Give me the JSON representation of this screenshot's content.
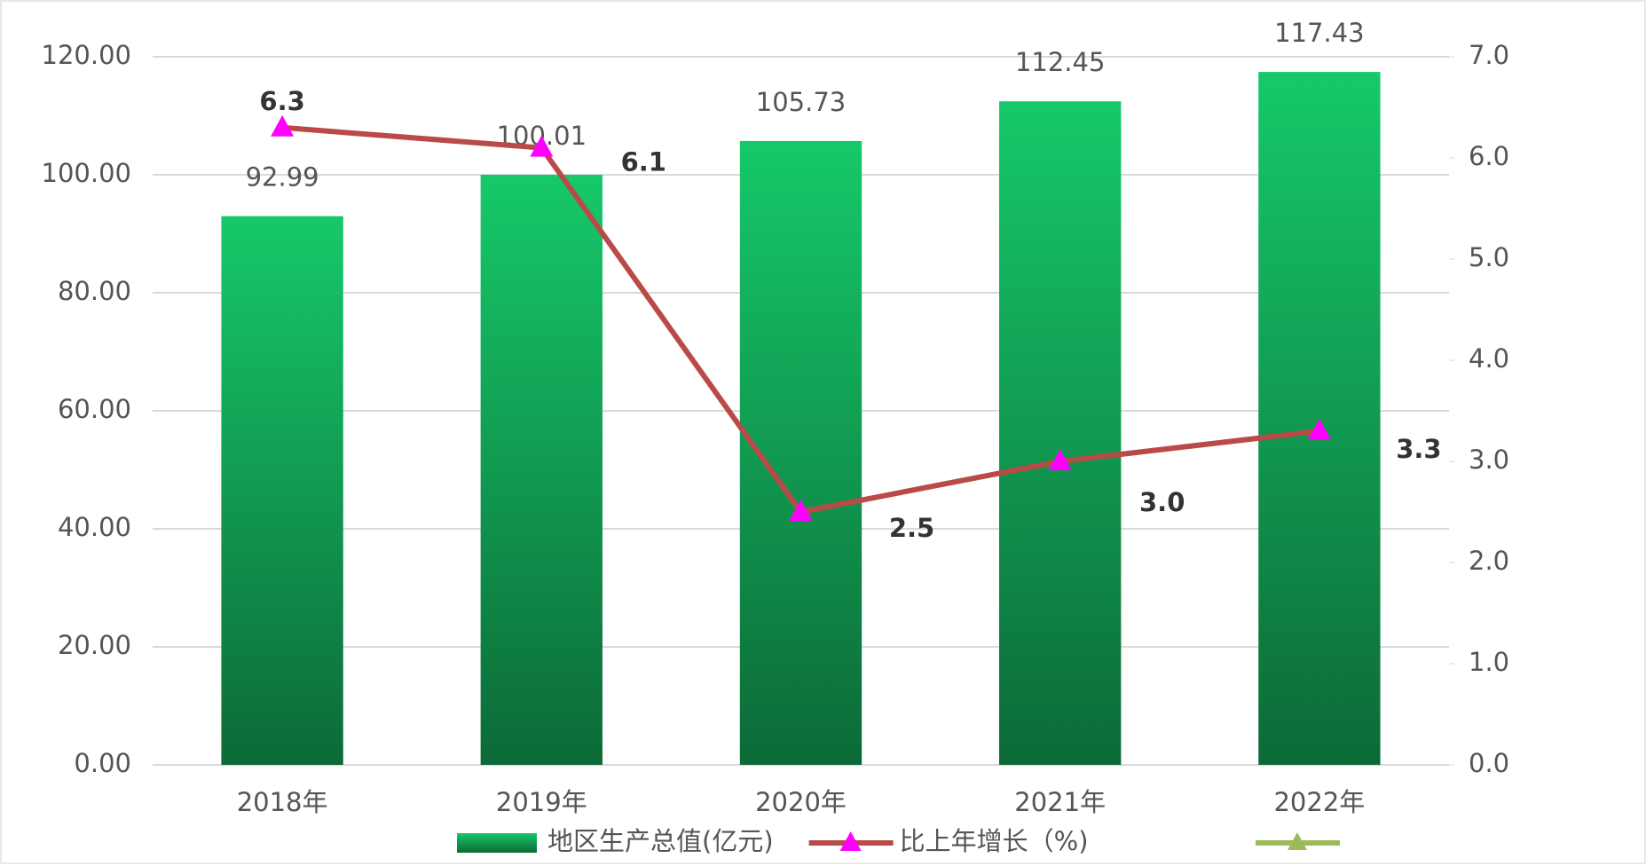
{
  "chart_data": {
    "type": "bar-line",
    "categories": [
      "2018年",
      "2019年",
      "2020年",
      "2021年",
      "2022年"
    ],
    "series": [
      {
        "name": "地区生产总值(亿元)",
        "type": "bar",
        "color": "#14b85e",
        "values": [
          92.99,
          100.01,
          105.73,
          112.45,
          117.43
        ]
      },
      {
        "name": "比上年增长（%)",
        "type": "line",
        "axis": "y2",
        "color": "#b94a48",
        "marker_color": "#ff00ff",
        "values": [
          6.3,
          6.1,
          2.5,
          3.0,
          3.3
        ],
        "value_labels": [
          "6.3",
          "6.1",
          "2.5",
          "3.0",
          "3.3"
        ]
      }
    ],
    "ylim": [
      0,
      120
    ],
    "yticks": [
      {
        "value": 0,
        "label": "0.00"
      },
      {
        "value": 20,
        "label": "20.00"
      },
      {
        "value": 40,
        "label": "40.00"
      },
      {
        "value": 60,
        "label": "60.00"
      },
      {
        "value": 80,
        "label": "80.00"
      },
      {
        "value": 100,
        "label": "100.00"
      },
      {
        "value": 120,
        "label": "120.00"
      }
    ],
    "y2lim": [
      0,
      7
    ],
    "y2ticks": [
      {
        "value": 0,
        "label": "0.0"
      },
      {
        "value": 1,
        "label": "1.0"
      },
      {
        "value": 2,
        "label": "2.0"
      },
      {
        "value": 3,
        "label": "3.0"
      },
      {
        "value": 4,
        "label": "4.0"
      },
      {
        "value": 5,
        "label": "5.0"
      },
      {
        "value": 6,
        "label": "6.0"
      },
      {
        "value": 7,
        "label": "7.0"
      }
    ],
    "grid": true,
    "legend": "bottom"
  }
}
